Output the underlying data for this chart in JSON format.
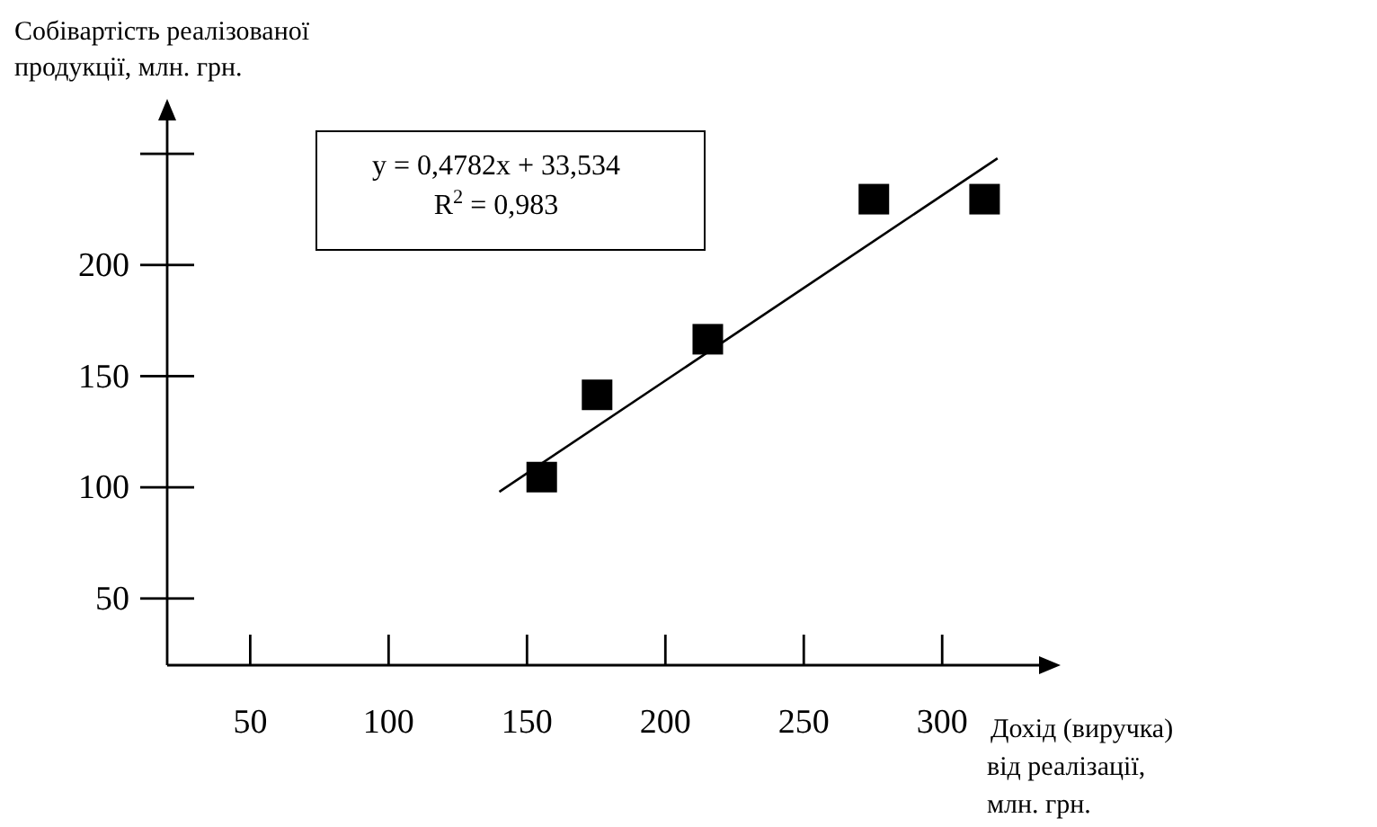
{
  "chart_data": {
    "type": "scatter",
    "xlabel": "Дохід (виручка) від реалізації, млн. грн.",
    "ylabel": "Собівартість реалізованої продукції, млн. грн.",
    "x": [
      155,
      175,
      215,
      275,
      315
    ],
    "series": [
      {
        "type": "scatter",
        "color": "#000000",
        "marker": "square",
        "values": [
          105,
          142,
          167,
          230,
          230
        ]
      },
      {
        "type": "line",
        "color": "#000000",
        "x": [
          140,
          320
        ],
        "values": [
          98,
          248
        ]
      }
    ],
    "xlim": [
      20,
      335
    ],
    "ylim": [
      20,
      265
    ],
    "xticks": [
      50,
      100,
      150,
      200,
      250,
      300
    ],
    "yticks": [
      50,
      100,
      150,
      200,
      {
        "value": 250,
        "label": null
      }
    ],
    "annotations": [
      "y = 0,4782x + 33,534",
      "R$^{2}$ = 0,983"
    ],
    "grid": false
  }
}
